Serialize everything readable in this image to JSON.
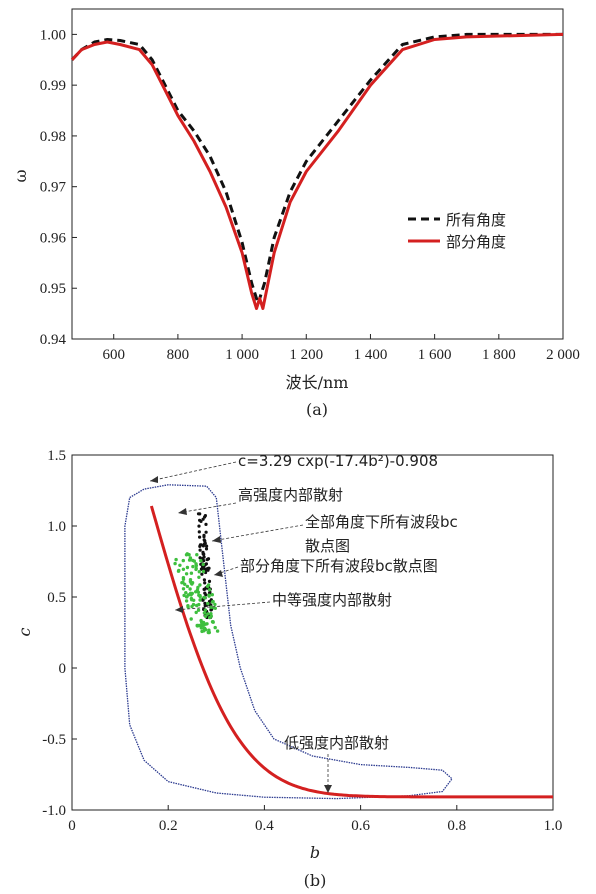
{
  "colors": {
    "red": "#d42020",
    "black": "#111111",
    "blue": "#2b3a8f",
    "green": "#3fbf3f"
  },
  "chart_data": [
    {
      "type": "line",
      "caption": "(a)",
      "xlabel": "波长/nm",
      "ylabel": "ω",
      "xlim": [
        470,
        2000
      ],
      "ylim": [
        0.94,
        1.005
      ],
      "xticks": [
        600,
        800,
        1000,
        1200,
        1400,
        1600,
        1800,
        2000
      ],
      "xtick_labels": [
        "600",
        "800",
        "1 000",
        "1 200",
        "1 400",
        "1 600",
        "1 800",
        "2 000"
      ],
      "yticks": [
        0.94,
        0.95,
        0.96,
        0.97,
        0.98,
        0.99,
        1.0
      ],
      "ytick_labels": [
        "0.94",
        "0.95",
        "0.96",
        "0.97",
        "0.98",
        "0.99",
        "1.00"
      ],
      "legend_position": "right",
      "series": [
        {
          "name": "所有角度",
          "style": "dashed",
          "color": "#111111",
          "points": [
            [
              470,
              0.995
            ],
            [
              500,
              0.997
            ],
            [
              540,
              0.9985
            ],
            [
              580,
              0.999
            ],
            [
              620,
              0.9988
            ],
            [
              680,
              0.998
            ],
            [
              720,
              0.995
            ],
            [
              760,
              0.99
            ],
            [
              800,
              0.985
            ],
            [
              850,
              0.981
            ],
            [
              900,
              0.976
            ],
            [
              950,
              0.969
            ],
            [
              1000,
              0.959
            ],
            [
              1030,
              0.951
            ],
            [
              1050,
              0.947
            ],
            [
              1070,
              0.951
            ],
            [
              1100,
              0.96
            ],
            [
              1150,
              0.969
            ],
            [
              1200,
              0.975
            ],
            [
              1300,
              0.983
            ],
            [
              1400,
              0.991
            ],
            [
              1500,
              0.998
            ],
            [
              1600,
              0.9995
            ],
            [
              1700,
              1.0
            ],
            [
              2000,
              1.0
            ]
          ]
        },
        {
          "name": "部分角度",
          "style": "solid",
          "color": "#d42020",
          "points": [
            [
              470,
              0.995
            ],
            [
              500,
              0.997
            ],
            [
              540,
              0.998
            ],
            [
              580,
              0.9985
            ],
            [
              620,
              0.998
            ],
            [
              680,
              0.997
            ],
            [
              720,
              0.994
            ],
            [
              760,
              0.989
            ],
            [
              800,
              0.984
            ],
            [
              850,
              0.979
            ],
            [
              900,
              0.973
            ],
            [
              950,
              0.966
            ],
            [
              1000,
              0.957
            ],
            [
              1030,
              0.949
            ],
            [
              1045,
              0.946
            ],
            [
              1055,
              0.948
            ],
            [
              1065,
              0.946
            ],
            [
              1100,
              0.957
            ],
            [
              1150,
              0.967
            ],
            [
              1200,
              0.973
            ],
            [
              1300,
              0.981
            ],
            [
              1400,
              0.99
            ],
            [
              1500,
              0.997
            ],
            [
              1600,
              0.999
            ],
            [
              1700,
              0.9995
            ],
            [
              2000,
              1.0
            ]
          ]
        }
      ]
    },
    {
      "type": "scatter",
      "caption": "(b)",
      "xlabel": "b",
      "ylabel": "c",
      "xlim": [
        0,
        1.0
      ],
      "ylim": [
        -1.0,
        1.5
      ],
      "xticks": [
        0,
        0.2,
        0.4,
        0.6,
        0.8,
        1.0
      ],
      "xtick_labels": [
        "0",
        "0.2",
        "0.4",
        "0.6",
        "0.8",
        "1.0"
      ],
      "yticks": [
        -1.0,
        -0.5,
        0,
        0.5,
        1.0,
        1.5
      ],
      "ytick_labels": [
        "-1.0",
        "-0.5",
        "0",
        "0.5",
        "1.0",
        "1.5"
      ],
      "fit_curve": {
        "label": "c=3.29 cxp(-17.4b²)-0.908",
        "a": 3.29,
        "k": 17.4,
        "c0": -0.908,
        "color": "#d42020"
      },
      "envelope": {
        "color": "#2b3a8f",
        "points": [
          [
            0.12,
            1.2
          ],
          [
            0.15,
            1.26
          ],
          [
            0.2,
            1.29
          ],
          [
            0.28,
            1.28
          ],
          [
            0.3,
            1.2
          ],
          [
            0.31,
            0.9
          ],
          [
            0.32,
            0.6
          ],
          [
            0.33,
            0.3
          ],
          [
            0.35,
            0.0
          ],
          [
            0.38,
            -0.3
          ],
          [
            0.42,
            -0.5
          ],
          [
            0.5,
            -0.62
          ],
          [
            0.6,
            -0.68
          ],
          [
            0.7,
            -0.7
          ],
          [
            0.77,
            -0.72
          ],
          [
            0.79,
            -0.78
          ],
          [
            0.77,
            -0.87
          ],
          [
            0.7,
            -0.9
          ],
          [
            0.55,
            -0.92
          ],
          [
            0.4,
            -0.91
          ],
          [
            0.3,
            -0.88
          ],
          [
            0.2,
            -0.8
          ],
          [
            0.15,
            -0.65
          ],
          [
            0.12,
            -0.4
          ],
          [
            0.11,
            0.0
          ],
          [
            0.11,
            0.5
          ],
          [
            0.11,
            1.0
          ],
          [
            0.12,
            1.2
          ]
        ]
      },
      "series": [
        {
          "name": "全部角度下所有波段bc散点图",
          "color": "#111111"
        },
        {
          "name": "部分角度下所有波段bc散点图",
          "color": "#3fbf3f"
        }
      ],
      "annotations": [
        "高强度内部散射",
        "全部角度下所有波段bc",
        "散点图",
        "部分角度下所有波段bc散点图",
        "中等强度内部散射",
        "低强度内部散射"
      ]
    }
  ]
}
